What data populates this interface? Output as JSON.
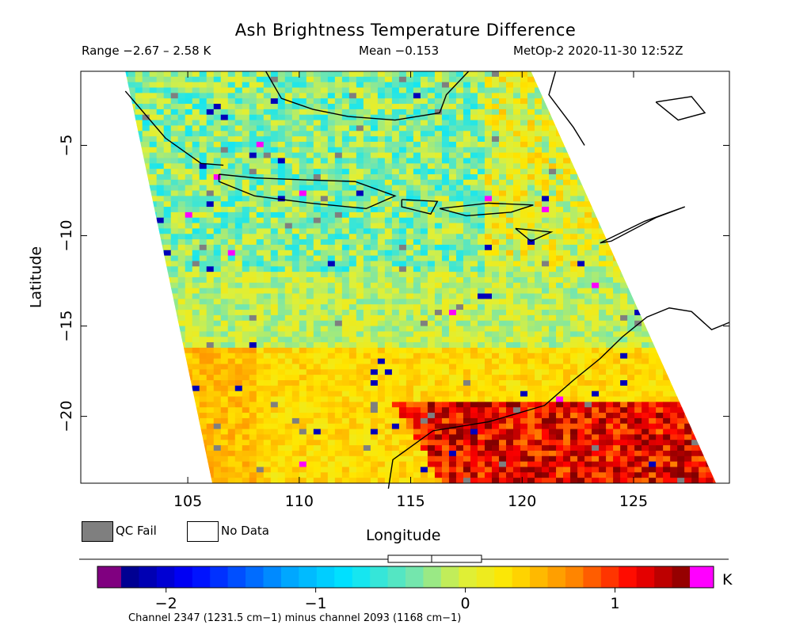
{
  "header": {
    "title": "Ash Brightness Temperature Difference",
    "range": "Range −2.67 – 2.58 K",
    "mean": "Mean −0.153",
    "satellite_time": "MetOp-2 2020-11-30 12:52Z"
  },
  "legend": {
    "qc_fail_label": "QC Fail",
    "no_data_label": "No Data",
    "qc_fail_color": "#7f7f7f",
    "no_data_color": "#ffffff"
  },
  "colorbar": {
    "unit": "K",
    "ticks": [
      -2,
      -1,
      0,
      1
    ],
    "tick_labels": [
      "−2",
      "−1",
      "0",
      "1"
    ],
    "range": [
      -2.3,
      1.5
    ],
    "underflow_color": "#800080",
    "overflow_color": "#ff00ff",
    "footnote": "Channel 2347 (1231.5 cm−1) minus channel 2093 (1168 cm−1)"
  },
  "chart_data": {
    "type": "heatmap",
    "title": "Ash Brightness Temperature Difference",
    "xlabel": "Longitude",
    "ylabel": "Latitude",
    "xlim": [
      100.2,
      129.3
    ],
    "ylim": [
      -23.7,
      -0.9
    ],
    "x_ticks": [
      105,
      110,
      115,
      120,
      125
    ],
    "y_ticks": [
      -5,
      -10,
      -15,
      -20
    ],
    "y_tick_labels": [
      "−5",
      "−10",
      "−15",
      "−20"
    ],
    "value_unit": "K",
    "value_range": [
      -2.67,
      2.58
    ],
    "mean": -0.153,
    "swath_corners_lon_lat": [
      [
        102.2,
        -0.9
      ],
      [
        120.4,
        -0.9
      ],
      [
        128.7,
        -23.7
      ],
      [
        106.1,
        -23.7
      ]
    ],
    "regions": [
      {
        "name": "north-central",
        "value": -0.45
      },
      {
        "name": "south-west",
        "value": 0.3
      },
      {
        "name": "south-east-land",
        "value": 1.0
      }
    ]
  }
}
